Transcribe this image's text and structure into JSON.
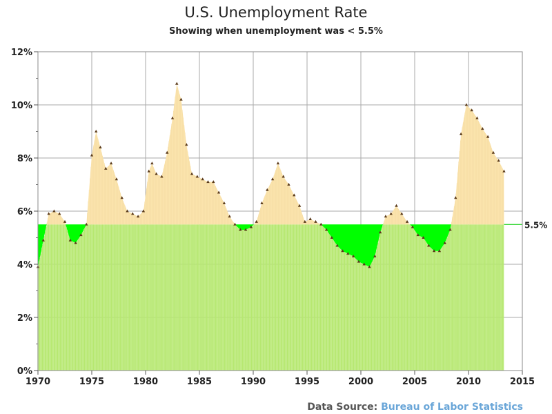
{
  "title": "U.S. Unemployment Rate",
  "subtitle": "Showing when unemployment was < 5.5%",
  "source": {
    "label": "Data Source:",
    "link": "Bureau of Labor Statistics"
  },
  "colors": {
    "above": "#fde6b0",
    "below": "#00ff00",
    "bars": "#b6e870",
    "marker": "#5a3a1a",
    "grid": "#aaaaaa"
  },
  "chart_data": {
    "type": "area",
    "xlim": [
      1970,
      2015
    ],
    "ylim": [
      0,
      12
    ],
    "xticks": [
      "1970",
      "1975",
      "1980",
      "1985",
      "1990",
      "1995",
      "2000",
      "2005",
      "2010",
      "2015"
    ],
    "yticks": [
      "0%",
      "2%",
      "4%",
      "6%",
      "8%",
      "10%",
      "12%"
    ],
    "grid": true,
    "threshold": 5.5,
    "threshold_label": "5.5%",
    "series": [
      {
        "x": [
          1970.0,
          1970.5,
          1971.0,
          1971.5,
          1972.0,
          1972.5,
          1973.0,
          1973.5,
          1974.0,
          1974.5,
          1975.0,
          1975.4,
          1975.8,
          1976.3,
          1976.8,
          1977.3,
          1977.8,
          1978.3,
          1978.8,
          1979.3,
          1979.8,
          1980.3,
          1980.6,
          1981.0,
          1981.5,
          1982.0,
          1982.5,
          1982.9,
          1983.3,
          1983.8,
          1984.3,
          1984.8,
          1985.3,
          1985.8,
          1986.3,
          1986.8,
          1987.3,
          1987.8,
          1988.3,
          1988.8,
          1989.3,
          1989.8,
          1990.3,
          1990.8,
          1991.3,
          1991.8,
          1992.3,
          1992.8,
          1993.3,
          1993.8,
          1994.3,
          1994.8,
          1995.3,
          1995.8,
          1996.3,
          1996.8,
          1997.3,
          1997.8,
          1998.3,
          1998.8,
          1999.3,
          1999.8,
          2000.3,
          2000.8,
          2001.3,
          2001.8,
          2002.3,
          2002.8,
          2003.3,
          2003.8,
          2004.3,
          2004.8,
          2005.3,
          2005.8,
          2006.3,
          2006.8,
          2007.3,
          2007.8,
          2008.3,
          2008.8,
          2009.3,
          2009.8,
          2010.3,
          2010.8,
          2011.3,
          2011.8,
          2012.3,
          2012.8,
          2013.3
        ],
        "y": [
          3.9,
          4.9,
          5.9,
          6.0,
          5.9,
          5.6,
          4.9,
          4.8,
          5.1,
          5.5,
          8.1,
          9.0,
          8.4,
          7.6,
          7.8,
          7.2,
          6.5,
          6.0,
          5.9,
          5.8,
          6.0,
          7.5,
          7.8,
          7.4,
          7.3,
          8.2,
          9.5,
          10.8,
          10.2,
          8.5,
          7.4,
          7.3,
          7.2,
          7.1,
          7.1,
          6.7,
          6.3,
          5.8,
          5.5,
          5.3,
          5.3,
          5.4,
          5.6,
          6.3,
          6.8,
          7.2,
          7.8,
          7.3,
          7.0,
          6.6,
          6.2,
          5.6,
          5.7,
          5.6,
          5.5,
          5.3,
          5.0,
          4.7,
          4.5,
          4.4,
          4.3,
          4.1,
          4.0,
          3.9,
          4.3,
          5.2,
          5.8,
          5.9,
          6.2,
          5.9,
          5.6,
          5.4,
          5.1,
          5.0,
          4.7,
          4.5,
          4.5,
          4.8,
          5.3,
          6.5,
          8.9,
          10.0,
          9.8,
          9.5,
          9.1,
          8.8,
          8.2,
          7.9,
          7.5
        ]
      }
    ]
  }
}
